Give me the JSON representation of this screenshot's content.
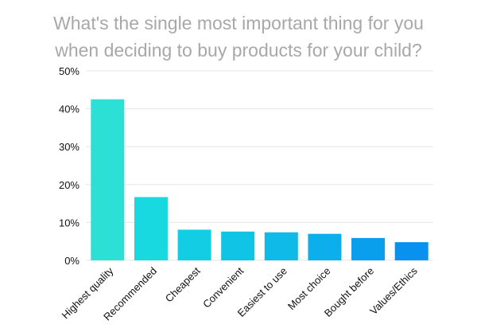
{
  "chart_data": {
    "type": "bar",
    "title_lines": [
      "What's the single most important thing for you",
      "when deciding to buy products for your child?"
    ],
    "categories": [
      "Highest quality",
      "Recommended",
      "Cheapest",
      "Convenient",
      "Easiest to use",
      "Most choice",
      "Bought before",
      "Values/Ethics"
    ],
    "values": [
      42.5,
      16.7,
      8.1,
      7.6,
      7.4,
      7.0,
      5.9,
      4.8
    ],
    "colors": [
      "#2de0d6",
      "#17d9df",
      "#12cde4",
      "#10c4e6",
      "#0fbae9",
      "#0cafeb",
      "#0a9fec",
      "#0891ee"
    ],
    "ylim": [
      0,
      50
    ],
    "yticks": [
      0,
      10,
      20,
      30,
      40,
      50
    ],
    "ytick_labels": [
      "0%",
      "10%",
      "20%",
      "30%",
      "40%",
      "50%"
    ],
    "grid": true,
    "xlabel": "",
    "ylabel": ""
  }
}
